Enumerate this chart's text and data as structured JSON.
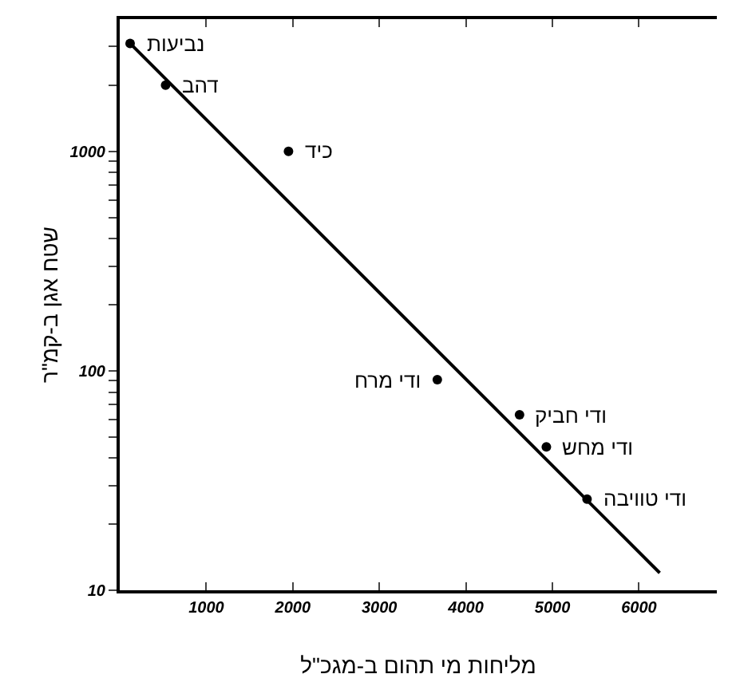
{
  "chart_data": {
    "type": "scatter",
    "xlabel": "מליחות מי תהום ב-מגכ\"ל",
    "ylabel": "שטח אגן ב-קמ\"ר",
    "log": "y",
    "grid": false,
    "xlim": [
      0,
      6900
    ],
    "ylim": [
      10,
      4000
    ],
    "xticks": [
      1000,
      2000,
      3000,
      4000,
      5000,
      6000
    ],
    "yticks": [
      10,
      {
        "value": 20,
        "label": null
      },
      {
        "value": 30,
        "label": null
      },
      {
        "value": 40,
        "label": null
      },
      {
        "value": 50,
        "label": null
      },
      {
        "value": 60,
        "label": null
      },
      {
        "value": 70,
        "label": null
      },
      {
        "value": 80,
        "label": null
      },
      {
        "value": 90,
        "label": null
      },
      100,
      {
        "value": 200,
        "label": null
      },
      {
        "value": 300,
        "label": null
      },
      {
        "value": 400,
        "label": null
      },
      {
        "value": 500,
        "label": null
      },
      {
        "value": 600,
        "label": null
      },
      {
        "value": 700,
        "label": null
      },
      {
        "value": 800,
        "label": null
      },
      {
        "value": 900,
        "label": null
      },
      1000,
      {
        "value": 2000,
        "label": null
      },
      {
        "value": 3000,
        "label": null
      }
    ],
    "series": [
      {
        "type": "scatter",
        "marker": "circle",
        "color": "#000000",
        "x": [
          120,
          530,
          1950,
          3670,
          4620,
          4930,
          5400
        ],
        "values": [
          3100,
          2000,
          1000,
          91,
          63,
          45,
          26
        ]
      },
      {
        "type": "line",
        "marker": "none",
        "color": "#000000",
        "line_style": "solid",
        "x": [
          120,
          6240
        ],
        "values": [
          3100,
          12
        ]
      }
    ],
    "annotations": [
      {
        "text": "נביעות",
        "x": 120,
        "y": 3100
      },
      {
        "text": "דהב",
        "x": 530,
        "y": 2000
      },
      {
        "text": "כיד",
        "x": 1950,
        "y": 1000
      },
      {
        "text": "ודי מרח",
        "x": 3670,
        "y": 91
      },
      {
        "text": "ודי חביק",
        "x": 4620,
        "y": 63
      },
      {
        "text": "ודי מחש",
        "x": 4930,
        "y": 45
      },
      {
        "text": "ודי טוויבה",
        "x": 5400,
        "y": 26
      }
    ]
  }
}
